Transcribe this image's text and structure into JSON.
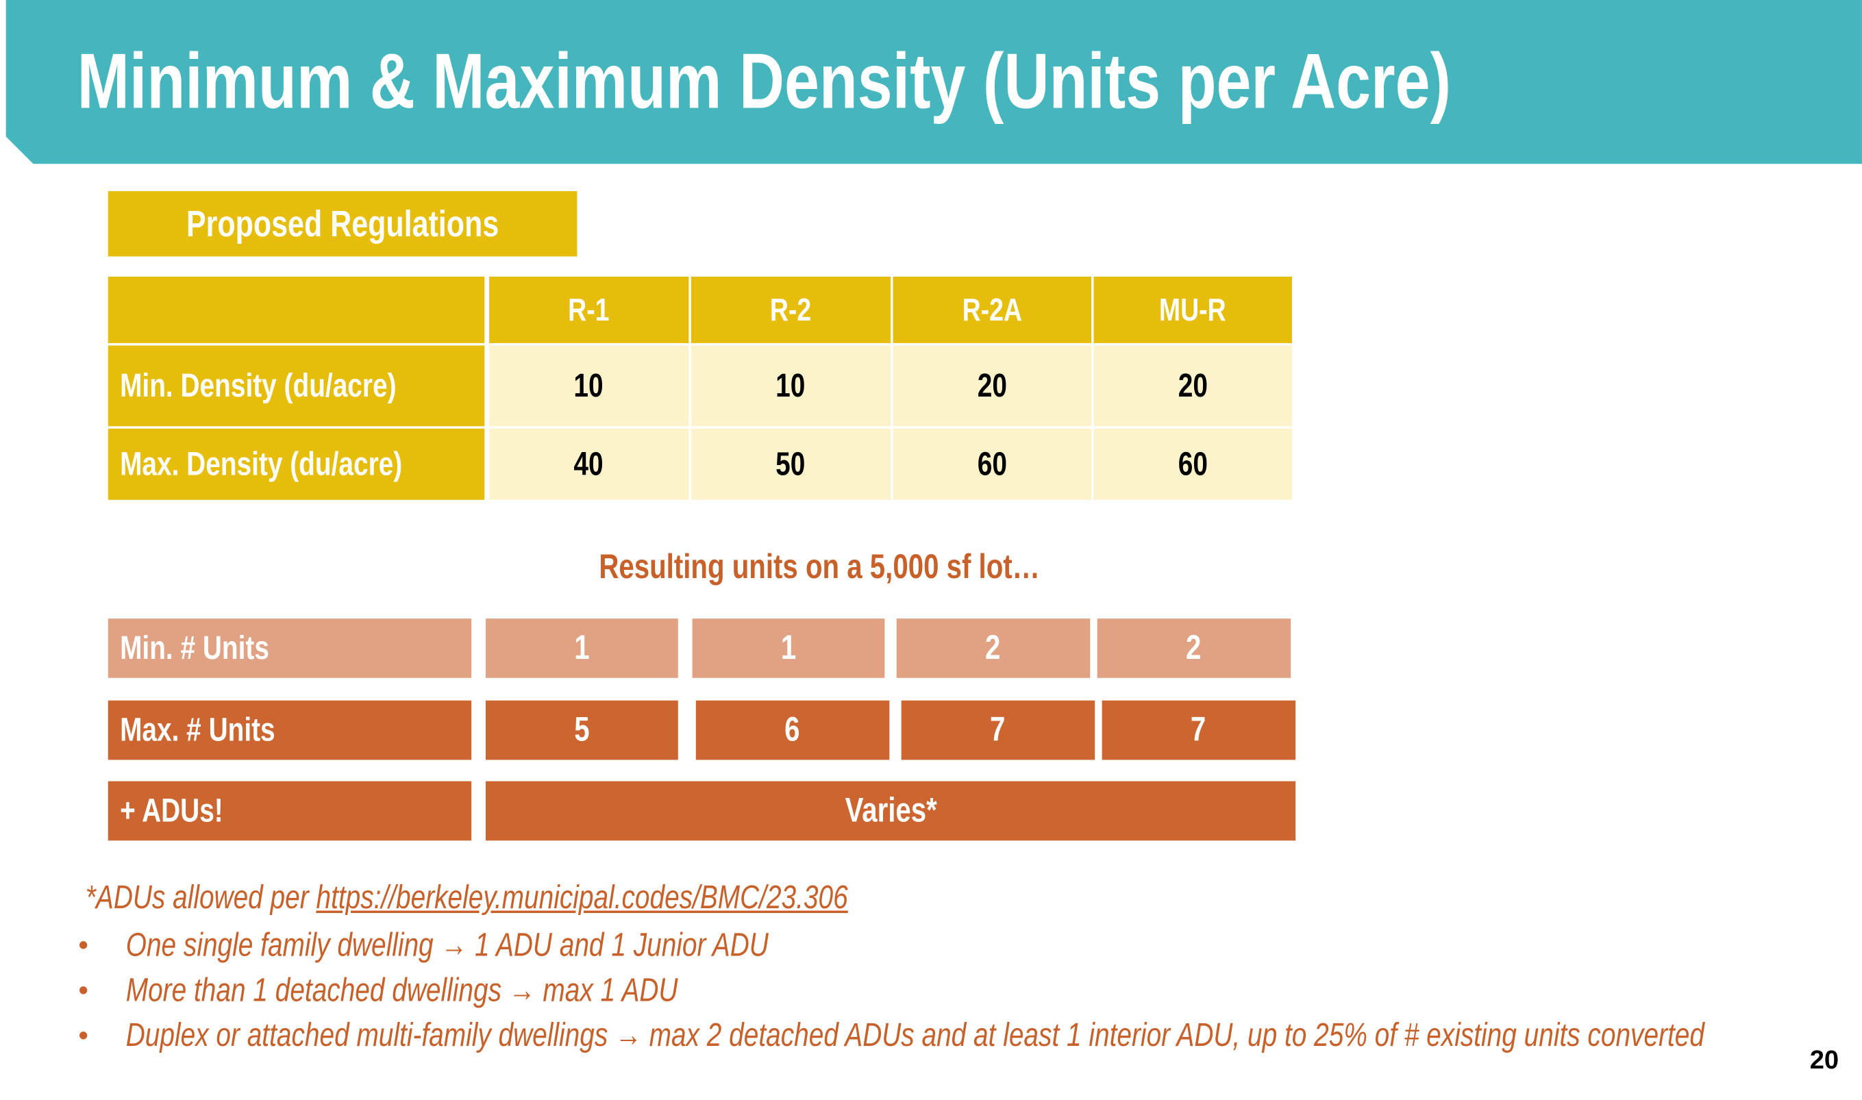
{
  "header": {
    "title": "Minimum & Maximum Density (Units per Acre)"
  },
  "proposed_label": "Proposed Regulations",
  "table": {
    "columns": [
      "R-1",
      "R-2",
      "R-2A",
      "MU-R"
    ],
    "rows": [
      {
        "label": "Min. Density (du/acre)",
        "values": [
          10,
          10,
          20,
          20
        ]
      },
      {
        "label": "Max. Density (du/acre)",
        "values": [
          40,
          50,
          60,
          60
        ]
      }
    ]
  },
  "resulting": {
    "caption": "Resulting units on a 5,000 sf lot…",
    "min": {
      "label": "Min. # Units",
      "values": [
        1,
        1,
        2,
        2
      ]
    },
    "max": {
      "label": "Max. # Units",
      "values": [
        5,
        6,
        7,
        7
      ]
    },
    "adus": {
      "label": "+ ADUs!",
      "value": "Varies*"
    }
  },
  "footnote": {
    "prefix": "*ADUs allowed per ",
    "link": "https://berkeley.municipal.codes/BMC/23.306",
    "bullets": [
      "One single family dwelling → 1 ADU and 1 Junior ADU",
      "More than 1 detached dwellings → max 1 ADU",
      "Duplex or attached multi-family dwellings → max 2 detached ADUs  and at least 1 interior ADU, up to 25% of # existing units converted"
    ]
  },
  "page_number": 20
}
